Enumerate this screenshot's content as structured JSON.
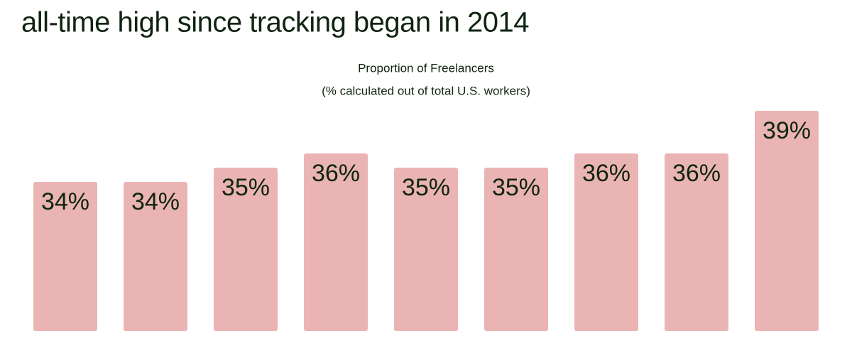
{
  "chart_data": {
    "type": "bar",
    "title": "all-time high since tracking began in 2014",
    "subtitle": [
      "Proportion of Freelancers",
      "(% calculated out of total U.S. workers)"
    ],
    "values": [
      34,
      34,
      35,
      36,
      35,
      35,
      36,
      36,
      39
    ],
    "value_labels": [
      "34%",
      "34%",
      "35%",
      "36%",
      "35%",
      "35%",
      "36%",
      "36%",
      "39%"
    ],
    "color": "#ebb4b4",
    "ylim": [
      23.5,
      39
    ]
  }
}
